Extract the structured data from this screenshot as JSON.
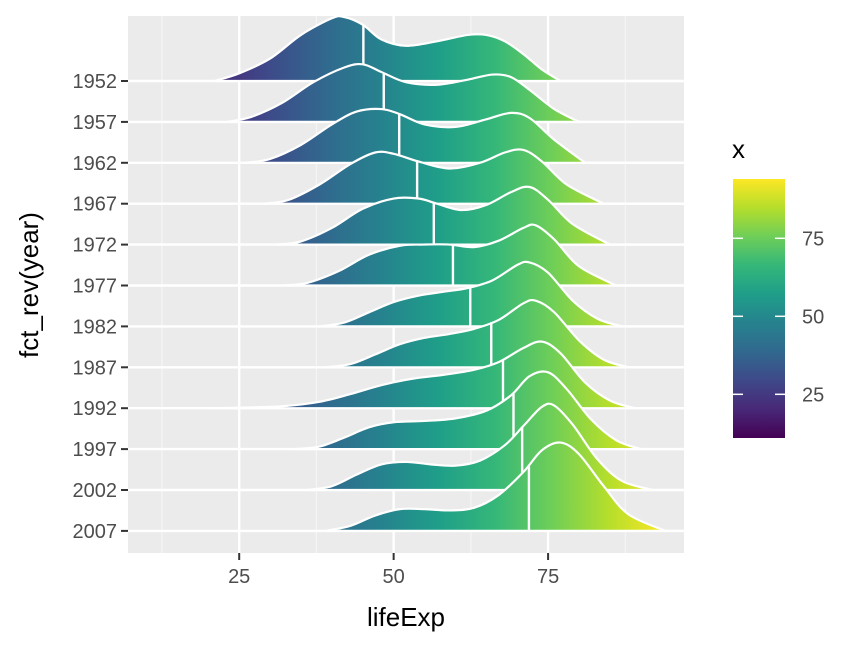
{
  "chart_data": {
    "type": "ridgeline",
    "xlabel": "lifeExp",
    "ylabel": "fct_rev(year)",
    "xlim": [
      7,
      97
    ],
    "x_ticks": [
      25,
      50,
      75
    ],
    "x_tick_labels": [
      "25",
      "50",
      "75"
    ],
    "categories": [
      "1952",
      "1957",
      "1962",
      "1967",
      "1972",
      "1977",
      "1982",
      "1987",
      "1992",
      "1997",
      "2002",
      "2007"
    ],
    "grid": true,
    "fill": "gradient along x (viridis)",
    "line_color": "#ffffff",
    "series": [
      {
        "year": "1952",
        "median": 45.1,
        "min": 21,
        "max": 77,
        "density": [
          [
            21,
            0
          ],
          [
            25,
            0.12
          ],
          [
            30,
            0.35
          ],
          [
            35,
            0.72
          ],
          [
            40,
            0.98
          ],
          [
            42,
            1.0
          ],
          [
            45,
            0.88
          ],
          [
            48,
            0.65
          ],
          [
            52,
            0.55
          ],
          [
            57,
            0.62
          ],
          [
            62,
            0.72
          ],
          [
            65,
            0.72
          ],
          [
            68,
            0.62
          ],
          [
            71,
            0.42
          ],
          [
            74,
            0.18
          ],
          [
            77,
            0
          ]
        ]
      },
      {
        "year": "1957",
        "median": 48.4,
        "min": 23,
        "max": 80,
        "density": [
          [
            23,
            0
          ],
          [
            27,
            0.08
          ],
          [
            32,
            0.3
          ],
          [
            37,
            0.62
          ],
          [
            42,
            0.85
          ],
          [
            45,
            0.9
          ],
          [
            48,
            0.78
          ],
          [
            52,
            0.62
          ],
          [
            57,
            0.58
          ],
          [
            62,
            0.66
          ],
          [
            66,
            0.74
          ],
          [
            69,
            0.7
          ],
          [
            72,
            0.5
          ],
          [
            76,
            0.2
          ],
          [
            80,
            0
          ]
        ]
      },
      {
        "year": "1962",
        "median": 50.9,
        "min": 26,
        "max": 81,
        "density": [
          [
            26,
            0
          ],
          [
            30,
            0.06
          ],
          [
            35,
            0.28
          ],
          [
            40,
            0.6
          ],
          [
            44,
            0.8
          ],
          [
            48,
            0.84
          ],
          [
            51,
            0.76
          ],
          [
            55,
            0.6
          ],
          [
            60,
            0.56
          ],
          [
            65,
            0.68
          ],
          [
            69,
            0.78
          ],
          [
            72,
            0.7
          ],
          [
            76,
            0.36
          ],
          [
            81,
            0
          ]
        ]
      },
      {
        "year": "1967",
        "median": 53.8,
        "min": 29,
        "max": 84,
        "density": [
          [
            29,
            0
          ],
          [
            33,
            0.06
          ],
          [
            38,
            0.3
          ],
          [
            43,
            0.62
          ],
          [
            47,
            0.8
          ],
          [
            50,
            0.78
          ],
          [
            54,
            0.66
          ],
          [
            59,
            0.55
          ],
          [
            64,
            0.64
          ],
          [
            68,
            0.8
          ],
          [
            71,
            0.84
          ],
          [
            74,
            0.66
          ],
          [
            78,
            0.3
          ],
          [
            84,
            0
          ]
        ]
      },
      {
        "year": "1972",
        "median": 56.5,
        "min": 31,
        "max": 85,
        "density": [
          [
            31,
            0
          ],
          [
            35,
            0.05
          ],
          [
            40,
            0.26
          ],
          [
            45,
            0.56
          ],
          [
            50,
            0.72
          ],
          [
            54,
            0.72
          ],
          [
            57,
            0.64
          ],
          [
            61,
            0.54
          ],
          [
            65,
            0.62
          ],
          [
            69,
            0.82
          ],
          [
            72,
            0.9
          ],
          [
            75,
            0.7
          ],
          [
            79,
            0.32
          ],
          [
            85,
            0
          ]
        ]
      },
      {
        "year": "1977",
        "median": 59.6,
        "min": 32,
        "max": 86,
        "density": [
          [
            32,
            0
          ],
          [
            36,
            0.04
          ],
          [
            41,
            0.22
          ],
          [
            46,
            0.48
          ],
          [
            51,
            0.62
          ],
          [
            55,
            0.64
          ],
          [
            59,
            0.64
          ],
          [
            63,
            0.6
          ],
          [
            67,
            0.7
          ],
          [
            71,
            0.9
          ],
          [
            73,
            0.94
          ],
          [
            76,
            0.72
          ],
          [
            80,
            0.3
          ],
          [
            86,
            0
          ]
        ]
      },
      {
        "year": "1982",
        "median": 62.4,
        "min": 38,
        "max": 87,
        "density": [
          [
            38,
            0
          ],
          [
            42,
            0.06
          ],
          [
            46,
            0.22
          ],
          [
            50,
            0.38
          ],
          [
            54,
            0.48
          ],
          [
            58,
            0.54
          ],
          [
            62,
            0.6
          ],
          [
            66,
            0.72
          ],
          [
            70,
            0.96
          ],
          [
            72,
            1.0
          ],
          [
            75,
            0.84
          ],
          [
            79,
            0.4
          ],
          [
            83,
            0.12
          ],
          [
            87,
            0
          ]
        ]
      },
      {
        "year": "1987",
        "median": 65.8,
        "min": 39,
        "max": 88,
        "density": [
          [
            39,
            0
          ],
          [
            43,
            0.05
          ],
          [
            47,
            0.2
          ],
          [
            51,
            0.36
          ],
          [
            55,
            0.46
          ],
          [
            59,
            0.52
          ],
          [
            63,
            0.6
          ],
          [
            67,
            0.74
          ],
          [
            71,
            1.0
          ],
          [
            73,
            1.04
          ],
          [
            76,
            0.86
          ],
          [
            80,
            0.42
          ],
          [
            84,
            0.12
          ],
          [
            88,
            0
          ]
        ]
      },
      {
        "year": "1992",
        "median": 67.7,
        "min": 20,
        "max": 89,
        "density": [
          [
            20,
            0
          ],
          [
            26,
            0.01
          ],
          [
            32,
            0.03
          ],
          [
            38,
            0.1
          ],
          [
            43,
            0.22
          ],
          [
            48,
            0.36
          ],
          [
            53,
            0.46
          ],
          [
            58,
            0.52
          ],
          [
            63,
            0.6
          ],
          [
            67,
            0.72
          ],
          [
            71,
            0.94
          ],
          [
            74,
            1.04
          ],
          [
            77,
            0.86
          ],
          [
            81,
            0.4
          ],
          [
            85,
            0.12
          ],
          [
            89,
            0
          ]
        ]
      },
      {
        "year": "1997",
        "median": 69.4,
        "min": 34,
        "max": 90,
        "density": [
          [
            34,
            0
          ],
          [
            38,
            0.04
          ],
          [
            42,
            0.18
          ],
          [
            46,
            0.34
          ],
          [
            50,
            0.42
          ],
          [
            55,
            0.44
          ],
          [
            60,
            0.48
          ],
          [
            65,
            0.6
          ],
          [
            69,
            0.84
          ],
          [
            72,
            1.14
          ],
          [
            75,
            1.2
          ],
          [
            78,
            0.94
          ],
          [
            82,
            0.46
          ],
          [
            86,
            0.14
          ],
          [
            90,
            0
          ]
        ]
      },
      {
        "year": "2002",
        "median": 70.8,
        "min": 36,
        "max": 92,
        "density": [
          [
            36,
            0
          ],
          [
            40,
            0.06
          ],
          [
            44,
            0.24
          ],
          [
            48,
            0.4
          ],
          [
            52,
            0.44
          ],
          [
            56,
            0.4
          ],
          [
            60,
            0.38
          ],
          [
            64,
            0.46
          ],
          [
            68,
            0.7
          ],
          [
            71,
            1.0
          ],
          [
            74,
            1.3
          ],
          [
            76,
            1.32
          ],
          [
            79,
            1.02
          ],
          [
            83,
            0.48
          ],
          [
            87,
            0.14
          ],
          [
            92,
            0
          ]
        ]
      },
      {
        "year": "2007",
        "median": 71.9,
        "min": 39,
        "max": 94,
        "density": [
          [
            39,
            0
          ],
          [
            43,
            0.08
          ],
          [
            47,
            0.24
          ],
          [
            51,
            0.34
          ],
          [
            55,
            0.34
          ],
          [
            59,
            0.32
          ],
          [
            63,
            0.36
          ],
          [
            67,
            0.56
          ],
          [
            71,
            0.92
          ],
          [
            74,
            1.26
          ],
          [
            77,
            1.38
          ],
          [
            80,
            1.2
          ],
          [
            84,
            0.7
          ],
          [
            88,
            0.26
          ],
          [
            94,
            0
          ]
        ]
      }
    ],
    "legend": {
      "title": "x",
      "position": "right",
      "scale": "viridis",
      "range": [
        11,
        94
      ],
      "ticks": [
        25,
        50,
        75
      ],
      "tick_labels": [
        "25",
        "50",
        "75"
      ]
    }
  },
  "colors": {
    "panel_background": "#ebebeb",
    "grid_major": "#ffffff",
    "grid_minor": "#f5f5f5",
    "viridis": [
      "#440154",
      "#482878",
      "#3e4989",
      "#31688e",
      "#26828e",
      "#1f9e89",
      "#35b779",
      "#6ece58",
      "#b5de2b",
      "#fde725"
    ]
  }
}
